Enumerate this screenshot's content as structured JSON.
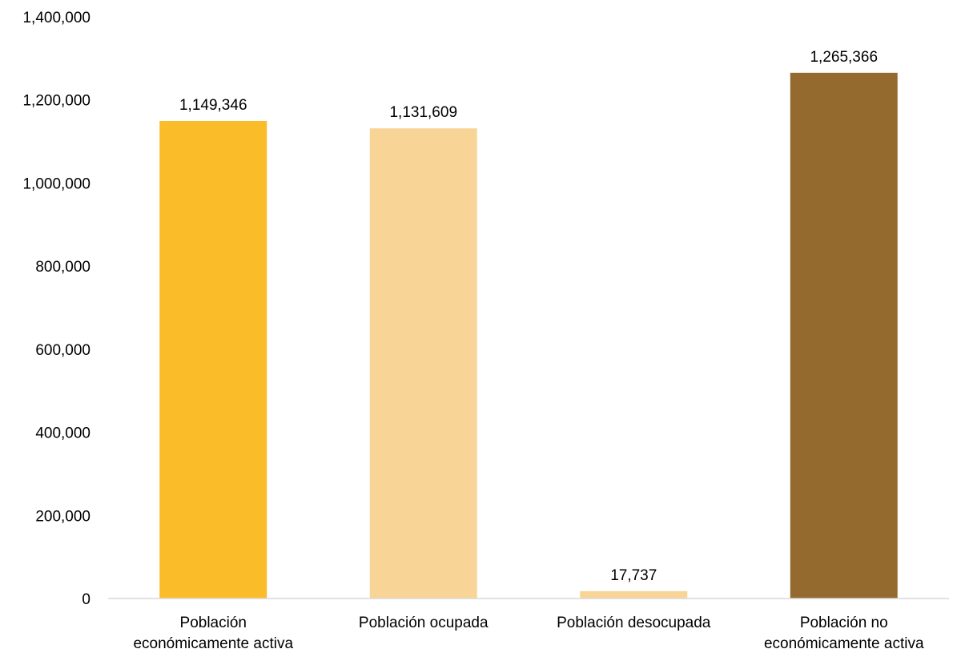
{
  "chart_data": {
    "type": "bar",
    "categories": [
      "Población económicamente activa",
      "Población ocupada",
      "Población desocupada",
      "Población no económicamente activa"
    ],
    "category_label_lines": [
      [
        "Población",
        "económicamente activa"
      ],
      [
        "Población ocupada"
      ],
      [
        "Población desocupada"
      ],
      [
        "Población no",
        "económicamente activa"
      ]
    ],
    "values": [
      1149346,
      1131609,
      17737,
      1265366
    ],
    "data_labels": [
      "1,149,346",
      "1,131,609",
      "17,737",
      "1,265,366"
    ],
    "colors": [
      "#FBBC2A",
      "#F8D597",
      "#F8D597",
      "#956A2E"
    ],
    "title": "",
    "xlabel": "",
    "ylabel": "",
    "ylim": [
      0,
      1400000
    ],
    "yticks": [
      0,
      200000,
      400000,
      600000,
      800000,
      1000000,
      1200000,
      1400000
    ],
    "ytick_labels": [
      "0",
      "200,000",
      "400,000",
      "600,000",
      "800,000",
      "1,000,000",
      "1,200,000",
      "1,400,000"
    ],
    "grid": false,
    "legend": "none",
    "axis_color": "#D9D9D9"
  }
}
